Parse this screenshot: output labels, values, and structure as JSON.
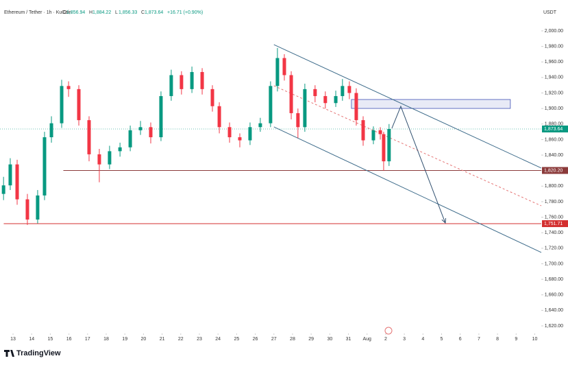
{
  "header": {
    "symbol": "Ethereum / Tether · 1h · KuCoin",
    "ohlc": [
      {
        "key": "O",
        "value": "1,856.94"
      },
      {
        "key": "H",
        "value": "1,884.22"
      },
      {
        "key": "L",
        "value": "1,856.33"
      },
      {
        "key": "C",
        "value": "1,873.64"
      }
    ],
    "change": "+16.71 (+0.90%)",
    "currency": "USDT"
  },
  "footer": {
    "brand": "TradingView"
  },
  "chart_data": {
    "type": "candlestick",
    "x": [
      -0.51,
      -0.15,
      0.22,
      0.77,
      1.32,
      1.69,
      2.06,
      2.61,
      2.98,
      3.53,
      4.08,
      4.63,
      5.18,
      5.74,
      6.29,
      6.84,
      7.39,
      7.94,
      8.49,
      9.04,
      9.6,
      10.15,
      10.7,
      11.07,
      11.62,
      12.17,
      12.72,
      13.27,
      13.82,
      14.19,
      14.56,
      14.93,
      15.29,
      15.66,
      16.21,
      16.76,
      17.32,
      17.68,
      18.05,
      18.42,
      18.79,
      19.34,
      19.71,
      19.89,
      20.18
    ],
    "open": [
      1790,
      1801,
      1828,
      1783,
      1757,
      1788,
      1863,
      1881,
      1929,
      1925,
      1885,
      1841,
      1828,
      1845,
      1850,
      1872,
      1876,
      1863,
      1916,
      1943,
      1925,
      1947,
      1925,
      1903,
      1876,
      1863,
      1859,
      1876,
      1881,
      1929,
      1965,
      1943,
      1894,
      1876,
      1925,
      1916,
      1907,
      1916,
      1929,
      1920,
      1885,
      1859,
      1872,
      1867,
      1832
    ],
    "high": [
      1812,
      1836,
      1834,
      1790,
      1795,
      1870,
      1890,
      1937,
      1935,
      1930,
      1890,
      1848,
      1852,
      1856,
      1878,
      1884,
      1882,
      1922,
      1950,
      1948,
      1954,
      1952,
      1930,
      1908,
      1882,
      1868,
      1882,
      1888,
      1935,
      1978,
      1970,
      1948,
      1900,
      1932,
      1930,
      1922,
      1923,
      1938,
      1935,
      1926,
      1890,
      1877,
      1876,
      1870,
      1880
    ],
    "low": [
      1782,
      1795,
      1776,
      1750,
      1752,
      1782,
      1856,
      1875,
      1915,
      1878,
      1832,
      1805,
      1822,
      1838,
      1845,
      1866,
      1855,
      1858,
      1910,
      1918,
      1920,
      1918,
      1896,
      1868,
      1856,
      1850,
      1853,
      1870,
      1876,
      1922,
      1936,
      1886,
      1862,
      1870,
      1908,
      1900,
      1902,
      1910,
      1912,
      1878,
      1852,
      1854,
      1860,
      1820,
      1826
    ],
    "close": [
      1801,
      1828,
      1783,
      1757,
      1788,
      1863,
      1881,
      1929,
      1925,
      1885,
      1841,
      1828,
      1845,
      1850,
      1872,
      1876,
      1863,
      1916,
      1943,
      1925,
      1947,
      1925,
      1903,
      1876,
      1863,
      1859,
      1876,
      1881,
      1929,
      1965,
      1943,
      1894,
      1876,
      1925,
      1916,
      1907,
      1916,
      1929,
      1920,
      1885,
      1859,
      1872,
      1867,
      1832,
      1873.64
    ],
    "up_color": "#089981",
    "down_color": "#f23645",
    "xlim": [
      -0.7,
      28.35
    ],
    "ylim": [
      1620,
      2000
    ],
    "xticks": [
      {
        "value": 0,
        "label": "13"
      },
      {
        "value": 1,
        "label": "14"
      },
      {
        "value": 2,
        "label": "15"
      },
      {
        "value": 3,
        "label": "16"
      },
      {
        "value": 4,
        "label": "17"
      },
      {
        "value": 5,
        "label": "18"
      },
      {
        "value": 6,
        "label": "19"
      },
      {
        "value": 7,
        "label": "20"
      },
      {
        "value": 8,
        "label": "21"
      },
      {
        "value": 9,
        "label": "22"
      },
      {
        "value": 10,
        "label": "23"
      },
      {
        "value": 11,
        "label": "24"
      },
      {
        "value": 12,
        "label": "25"
      },
      {
        "value": 13,
        "label": "26"
      },
      {
        "value": 14,
        "label": "27"
      },
      {
        "value": 15,
        "label": "28"
      },
      {
        "value": 16,
        "label": "29"
      },
      {
        "value": 17,
        "label": "30"
      },
      {
        "value": 18,
        "label": "31"
      },
      {
        "value": 19,
        "label": "Aug"
      },
      {
        "value": 20,
        "label": "2"
      },
      {
        "value": 21,
        "label": "3"
      },
      {
        "value": 22,
        "label": "4"
      },
      {
        "value": 23,
        "label": "5"
      },
      {
        "value": 24,
        "label": "6"
      },
      {
        "value": 25,
        "label": "7"
      },
      {
        "value": 26,
        "label": "8"
      },
      {
        "value": 27,
        "label": "9"
      },
      {
        "value": 28,
        "label": "10"
      }
    ],
    "yticks": [
      {
        "value": 1620,
        "label": "1,620.00"
      },
      {
        "value": 1640,
        "label": "1,640.00"
      },
      {
        "value": 1660,
        "label": "1,660.00"
      },
      {
        "value": 1680,
        "label": "1,680.00"
      },
      {
        "value": 1700,
        "label": "1,700.00"
      },
      {
        "value": 1720,
        "label": "1,720.00"
      },
      {
        "value": 1740,
        "label": "1,740.00"
      },
      {
        "value": 1760,
        "label": "1,760.00"
      },
      {
        "value": 1780,
        "label": "1,780.00"
      },
      {
        "value": 1800,
        "label": "1,800.00"
      },
      {
        "value": 1820,
        "label": "1,820.00"
      },
      {
        "value": 1840,
        "label": "1,840.00"
      },
      {
        "value": 1860,
        "label": "1,860.00"
      },
      {
        "value": 1880,
        "label": "1,880.00"
      },
      {
        "value": 1900,
        "label": "1,900.00"
      },
      {
        "value": 1920,
        "label": "1,920.00"
      },
      {
        "value": 1940,
        "label": "1,940.00"
      },
      {
        "value": 1960,
        "label": "1,960.00"
      },
      {
        "value": 1980,
        "label": "1,980.00"
      },
      {
        "value": 2000,
        "label": "2,000.00"
      }
    ],
    "last_price": {
      "value": 1873.64,
      "label": "1,873.64",
      "color": "#089981"
    },
    "hlines": [
      {
        "from": 2.7,
        "value": 1820.2,
        "label": "1,820.20",
        "color": "#8b3a3a"
      },
      {
        "from": -0.5,
        "value": 1751.71,
        "label": "1,751.71",
        "color": "#d32f2f"
      }
    ],
    "lines": [
      {
        "x": [
          14.0,
          28.35
        ],
        "y": [
          1982.3,
          1823.3
        ],
        "color": "#3d6b8a",
        "dash": false
      },
      {
        "x": [
          14.0,
          28.35
        ],
        "y": [
          1876.3,
          1714.6
        ],
        "color": "#3d6b8a",
        "dash": false
      },
      {
        "x": [
          14.0,
          28.35
        ],
        "y": [
          1929.3,
          1774.7
        ],
        "color": "#e57373",
        "dash": true
      },
      {
        "x": [
          20.33,
          20.81,
          23.2
        ],
        "y": [
          1874.5,
          1902.8,
          1752.6
        ],
        "color": "#2f4f6f",
        "dash": false
      }
    ],
    "zone": {
      "x": [
        18.16,
        26.69
      ],
      "y": [
        1900.1,
        1911.6
      ],
      "color": "#3f51b5"
    }
  }
}
